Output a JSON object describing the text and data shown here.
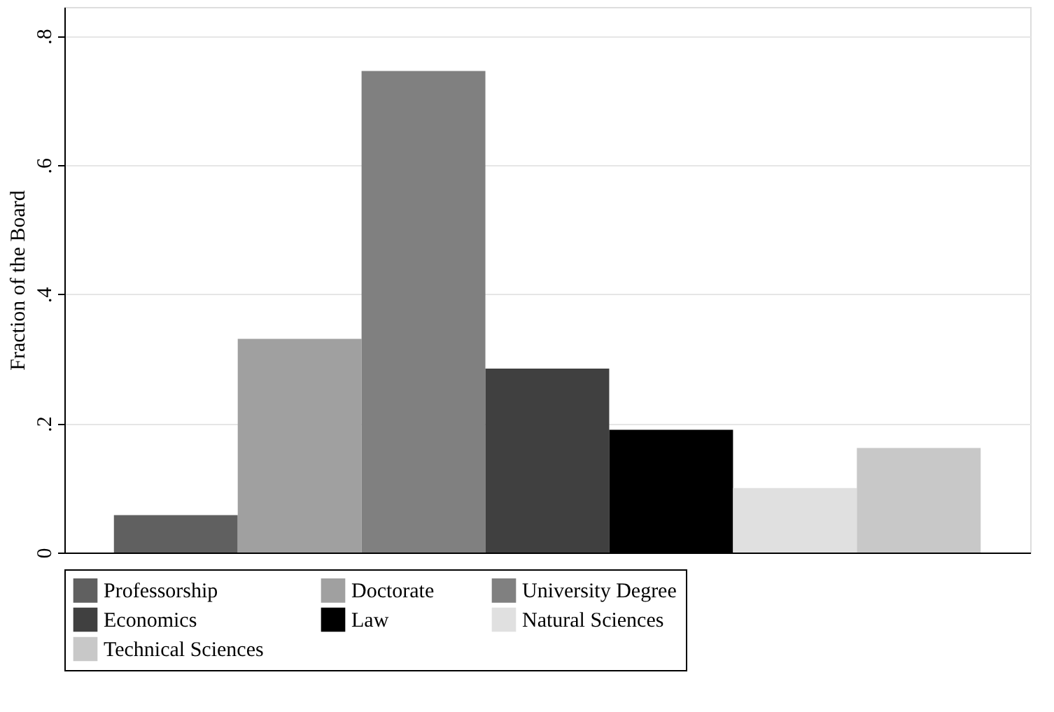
{
  "chart_data": {
    "type": "bar",
    "ylabel": "Fraction of the Board",
    "categories": [
      null
    ],
    "series": [
      {
        "name": "Professorship",
        "color": "#606060",
        "values": [
          0.058
        ]
      },
      {
        "name": "Doctorate",
        "color": "#a0a0a0",
        "values": [
          0.331
        ]
      },
      {
        "name": "University Degree",
        "color": "#808080",
        "values": [
          0.746
        ]
      },
      {
        "name": "Economics",
        "color": "#404040",
        "values": [
          0.285
        ]
      },
      {
        "name": "Law",
        "color": "#000000",
        "values": [
          0.19
        ]
      },
      {
        "name": "Natural Sciences",
        "color": "#e0e0e0",
        "values": [
          0.1
        ]
      },
      {
        "name": "Technical Sciences",
        "color": "#c8c8c8",
        "values": [
          0.162
        ]
      }
    ],
    "ylim": [
      0,
      0.845
    ],
    "yticks": [
      {
        "value": 0,
        "label": "0"
      },
      {
        "value": 0.2,
        "label": ".2"
      },
      {
        "value": 0.4,
        "label": ".4"
      },
      {
        "value": 0.6,
        "label": ".6"
      },
      {
        "value": 0.8,
        "label": ".8"
      }
    ],
    "grid": "y",
    "legend": "bottom"
  }
}
